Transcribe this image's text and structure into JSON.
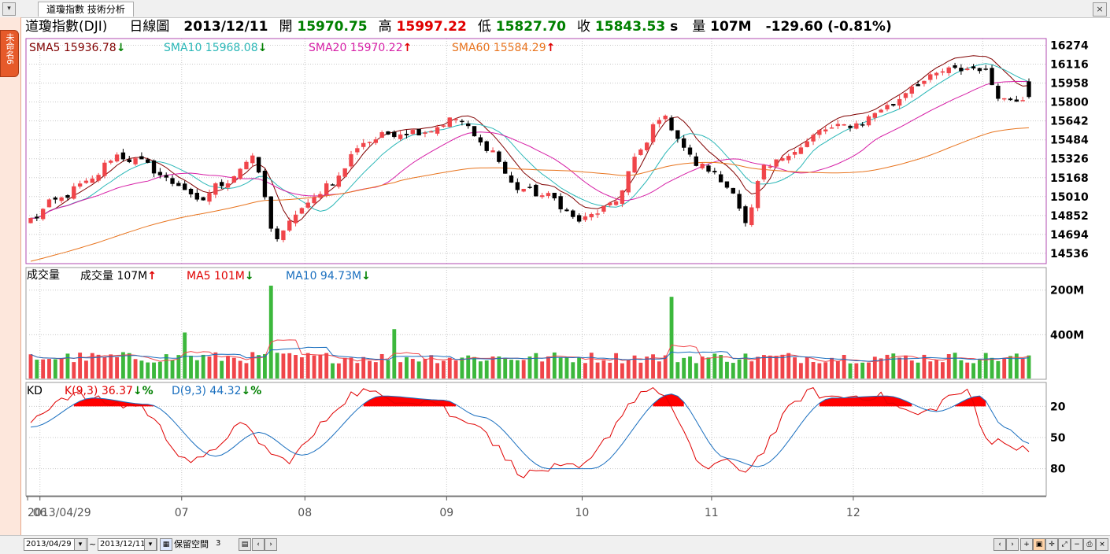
{
  "app": {
    "tab_title": "道瓊指數 技術分析",
    "side_tab_label": "未命名6",
    "menu_icon": "chevron-down-icon",
    "close_icon": "close-icon"
  },
  "header": {
    "symbol": "道瓊指數(DJI)",
    "period": "日線圖",
    "date": "2013/12/11",
    "open_label": "開",
    "open": "15970.75",
    "high_label": "高",
    "high": "15997.22",
    "low_label": "低",
    "low": "15827.70",
    "close_label": "收",
    "close": "15843.53",
    "close_suffix": "s",
    "volume_label": "量",
    "volume": "107M",
    "change": "-129.60 (-0.81%)"
  },
  "price_panel": {
    "legend": [
      {
        "label": "SMA5",
        "value": "15936.78",
        "arrow": "↓",
        "color": "#800000",
        "arrow_color": "#008000"
      },
      {
        "label": "SMA10",
        "value": "15968.08",
        "arrow": "↓",
        "color": "#2ab7b7",
        "arrow_color": "#008000"
      },
      {
        "label": "SMA20",
        "value": "15970.22",
        "arrow": "↑",
        "color": "#d61fa6",
        "arrow_color": "#e00000"
      },
      {
        "label": "SMA60",
        "value": "15584.29",
        "arrow": "↑",
        "color": "#e8741e",
        "arrow_color": "#e00000"
      }
    ],
    "y_ticks": [
      "16274",
      "16116",
      "15958",
      "15800",
      "15642",
      "15484",
      "15326",
      "15168",
      "15010",
      "14852",
      "14694",
      "14536"
    ]
  },
  "volume_panel": {
    "title": "成交量",
    "legend": [
      {
        "label": "成交量",
        "value": "107M",
        "arrow": "↑",
        "color": "#000000",
        "arrow_color": "#e00000"
      },
      {
        "label": "MA5",
        "value": "101M",
        "arrow": "↓",
        "color": "#e00000",
        "arrow_color": "#008000"
      },
      {
        "label": "MA10",
        "value": "94.73M",
        "arrow": "↓",
        "color": "#1a6fbf",
        "arrow_color": "#008000"
      }
    ],
    "y_ticks": [
      "400M",
      "200M"
    ]
  },
  "kd_panel": {
    "title": "KD",
    "legend": [
      {
        "label": "K(9,3)",
        "value": "36.37",
        "arrow": "↓",
        "suffix": "%",
        "color": "#e00000",
        "arrow_color": "#008000"
      },
      {
        "label": "D(9,3)",
        "value": "44.32",
        "arrow": "↓",
        "suffix": "%",
        "color": "#1a6fbf",
        "arrow_color": "#008000"
      }
    ],
    "y_ticks": [
      "80",
      "50",
      "20"
    ]
  },
  "x_axis": {
    "labels": [
      "2013/04/29",
      "06",
      "07",
      "08",
      "09",
      "10",
      "11",
      "12"
    ]
  },
  "statusbar": {
    "start_date": "2013/04/29",
    "tilde": "~",
    "end_date": "2013/12/11",
    "reserve_label": "保留空間",
    "reserve_value": "3"
  },
  "colors": {
    "up": "#f0454a",
    "down": "#000000",
    "vol_up": "#f0454a",
    "vol_down": "#3cb83c",
    "k_line": "#e00000",
    "d_line": "#1a6fbf",
    "overbought_fill": "#ff0000",
    "oversold_fill": "#00e000",
    "frame": "#b04bb0",
    "grid": "#c8c8c8"
  },
  "chart_data": [
    {
      "type": "candlestick",
      "title": "道瓊指數(DJI) 日線圖",
      "x_range": [
        "2013/04/29",
        "2013/12/11"
      ],
      "ylim": [
        14450,
        16330
      ],
      "y_ticks": [
        16274,
        16116,
        15958,
        15800,
        15642,
        15484,
        15326,
        15168,
        15010,
        14852,
        14694,
        14536
      ],
      "close_anchors": [
        {
          "date": "2013/04/29",
          "close": 14819
        },
        {
          "date": "2013/05/03",
          "close": 14974
        },
        {
          "date": "2013/05/10",
          "close": 15118
        },
        {
          "date": "2013/05/17",
          "close": 15354
        },
        {
          "date": "2013/05/22",
          "close": 15308
        },
        {
          "date": "2013/05/31",
          "close": 15116
        },
        {
          "date": "2013/06/05",
          "close": 14961
        },
        {
          "date": "2013/06/11",
          "close": 15122
        },
        {
          "date": "2013/06/18",
          "close": 15318
        },
        {
          "date": "2013/06/24",
          "close": 14660
        },
        {
          "date": "2013/06/28",
          "close": 14910
        },
        {
          "date": "2013/07/05",
          "close": 15136
        },
        {
          "date": "2013/07/12",
          "close": 15464
        },
        {
          "date": "2013/07/19",
          "close": 15543
        },
        {
          "date": "2013/07/26",
          "close": 15559
        },
        {
          "date": "2013/08/02",
          "close": 15658
        },
        {
          "date": "2013/08/09",
          "close": 15426
        },
        {
          "date": "2013/08/16",
          "close": 15081
        },
        {
          "date": "2013/08/23",
          "close": 15010
        },
        {
          "date": "2013/08/30",
          "close": 14810
        },
        {
          "date": "2013/09/06",
          "close": 14922
        },
        {
          "date": "2013/09/13",
          "close": 15376
        },
        {
          "date": "2013/09/18",
          "close": 15677
        },
        {
          "date": "2013/09/27",
          "close": 15258
        },
        {
          "date": "2013/10/04",
          "close": 15072
        },
        {
          "date": "2013/10/08",
          "close": 14776
        },
        {
          "date": "2013/10/11",
          "close": 15237
        },
        {
          "date": "2013/10/18",
          "close": 15399
        },
        {
          "date": "2013/10/25",
          "close": 15570
        },
        {
          "date": "2013/11/01",
          "close": 15615
        },
        {
          "date": "2013/11/08",
          "close": 15761
        },
        {
          "date": "2013/11/15",
          "close": 15961
        },
        {
          "date": "2013/11/22",
          "close": 16064
        },
        {
          "date": "2013/11/29",
          "close": 16086
        },
        {
          "date": "2013/12/05",
          "close": 15822
        },
        {
          "date": "2013/12/11",
          "close": 15843.53
        }
      ],
      "series": [
        {
          "name": "SMA5",
          "last": 15936.78
        },
        {
          "name": "SMA10",
          "last": 15968.08
        },
        {
          "name": "SMA20",
          "last": 15970.22
        },
        {
          "name": "SMA60",
          "last": 15584.29
        }
      ],
      "last_bar": {
        "date": "2013/12/11",
        "open": 15970.75,
        "high": 15997.22,
        "low": 15827.7,
        "close": 15843.53,
        "change": -129.6,
        "change_pct": -0.81
      }
    },
    {
      "type": "bar",
      "title": "成交量",
      "ylim": [
        0,
        480
      ],
      "y_ticks": [
        200,
        400
      ],
      "unit": "M",
      "typical_volume": 95,
      "spikes": [
        {
          "date": "2013/06/21",
          "value": 420
        },
        {
          "date": "2013/09/20",
          "value": 370
        },
        {
          "date": "2013/07/19",
          "value": 225
        },
        {
          "date": "2013/06/03",
          "value": 210
        }
      ],
      "series": [
        {
          "name": "成交量",
          "last": 107
        },
        {
          "name": "MA5",
          "last": 101
        },
        {
          "name": "MA10",
          "last": 94.73
        }
      ]
    },
    {
      "type": "line",
      "title": "KD",
      "ylim": [
        0,
        100
      ],
      "y_ticks": [
        20,
        50,
        80
      ],
      "series": [
        {
          "name": "K(9,3)",
          "last": 36.37
        },
        {
          "name": "D(9,3)",
          "last": 44.32
        }
      ],
      "d_anchors": [
        {
          "date": "2013/04/29",
          "value": 60
        },
        {
          "date": "2013/05/13",
          "value": 88
        },
        {
          "date": "2013/05/24",
          "value": 82
        },
        {
          "date": "2013/06/10",
          "value": 32
        },
        {
          "date": "2013/06/19",
          "value": 55
        },
        {
          "date": "2013/06/28",
          "value": 33
        },
        {
          "date": "2013/07/17",
          "value": 90
        },
        {
          "date": "2013/07/31",
          "value": 86
        },
        {
          "date": "2013/08/08",
          "value": 70
        },
        {
          "date": "2013/08/23",
          "value": 20
        },
        {
          "date": "2013/09/03",
          "value": 20
        },
        {
          "date": "2013/09/20",
          "value": 92
        },
        {
          "date": "2013/10/03",
          "value": 30
        },
        {
          "date": "2013/10/10",
          "value": 22
        },
        {
          "date": "2013/10/28",
          "value": 88
        },
        {
          "date": "2013/11/08",
          "value": 90
        },
        {
          "date": "2013/11/20",
          "value": 75
        },
        {
          "date": "2013/11/29",
          "value": 90
        },
        {
          "date": "2013/12/05",
          "value": 60
        },
        {
          "date": "2013/12/11",
          "value": 44.32
        }
      ]
    }
  ]
}
